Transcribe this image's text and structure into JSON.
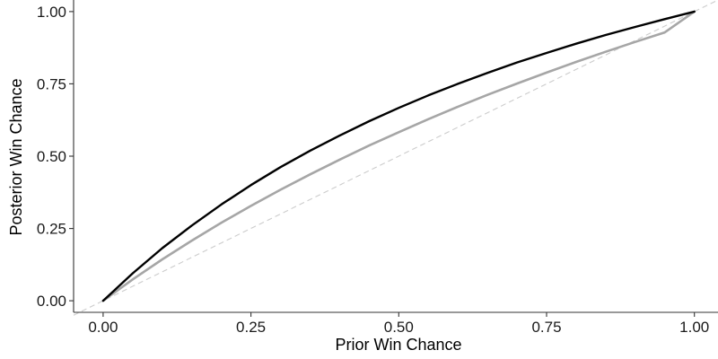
{
  "chart_data": {
    "type": "line",
    "title": "",
    "xlabel": "Prior Win Chance",
    "ylabel": "Posterior Win Chance",
    "xlim": [
      -0.05,
      1.04
    ],
    "ylim": [
      -0.04,
      1.04
    ],
    "x_ticks": [
      0.0,
      0.25,
      0.5,
      0.75,
      1.0
    ],
    "x_tick_labels": [
      "0.00",
      "0.25",
      "0.50",
      "0.75",
      "1.00"
    ],
    "y_ticks": [
      0.0,
      0.25,
      0.5,
      0.75,
      1.0
    ],
    "y_tick_labels": [
      "0.00",
      "0.25",
      "0.50",
      "0.75",
      "1.00"
    ],
    "grid": false,
    "legend": "none",
    "x": [
      0.0,
      0.05,
      0.1,
      0.15,
      0.2,
      0.25,
      0.3,
      0.35,
      0.4,
      0.45,
      0.5,
      0.55,
      0.6,
      0.65,
      0.7,
      0.75,
      0.8,
      0.85,
      0.9,
      0.95,
      1.0
    ],
    "series": [
      {
        "color": "#000000",
        "values": [
          0.0,
          0.095,
          0.182,
          0.26,
          0.333,
          0.4,
          0.462,
          0.519,
          0.571,
          0.621,
          0.667,
          0.71,
          0.75,
          0.788,
          0.824,
          0.857,
          0.889,
          0.919,
          0.947,
          0.974,
          1.0
        ]
      },
      {
        "color": "#a6a6a6",
        "values": [
          0.0,
          0.074,
          0.143,
          0.208,
          0.27,
          0.328,
          0.384,
          0.437,
          0.488,
          0.537,
          0.583,
          0.628,
          0.671,
          0.712,
          0.751,
          0.789,
          0.826,
          0.861,
          0.895,
          0.928,
          1.0
        ]
      }
    ],
    "reference_line": {
      "x": [
        -0.05,
        1.04
      ],
      "y": [
        -0.05,
        1.04
      ],
      "color": "#cccccc",
      "style": "dashed"
    }
  }
}
